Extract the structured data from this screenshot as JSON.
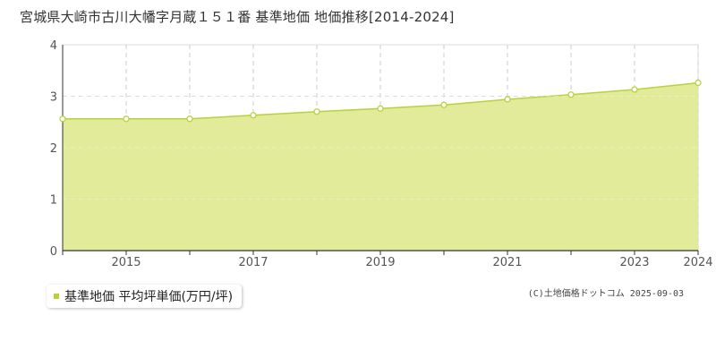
{
  "title": "宮城県大崎市古川大幡字月蔵１５１番 基準地価 地価推移[2014-2024]",
  "credit": "(C)土地価格ドットコム 2025-09-03",
  "colors": {
    "fill": "#dfea95",
    "line": "#b6d33c",
    "marker_fill": "#ffffff",
    "legend_marker": "#b6d33c",
    "grid": "#cccccc",
    "axis": "#333333"
  },
  "chart_data": {
    "type": "area",
    "series": [
      {
        "name": "基準地価 平均坪単価(万円/坪)",
        "x": [
          2014,
          2015,
          2016,
          2017,
          2018,
          2019,
          2020,
          2021,
          2022,
          2023,
          2024
        ],
        "values": [
          2.56,
          2.56,
          2.56,
          2.63,
          2.7,
          2.76,
          2.83,
          2.94,
          3.03,
          3.13,
          3.26
        ]
      }
    ],
    "xlim": [
      2014,
      2024
    ],
    "ylim": [
      0,
      4
    ],
    "x_ticks": [
      2015,
      2017,
      2019,
      2021,
      2023,
      2024
    ],
    "y_ticks": [
      0,
      1,
      2,
      3,
      4
    ],
    "xlabel": "",
    "ylabel": "",
    "grid": true,
    "legend": "bottom-left"
  }
}
